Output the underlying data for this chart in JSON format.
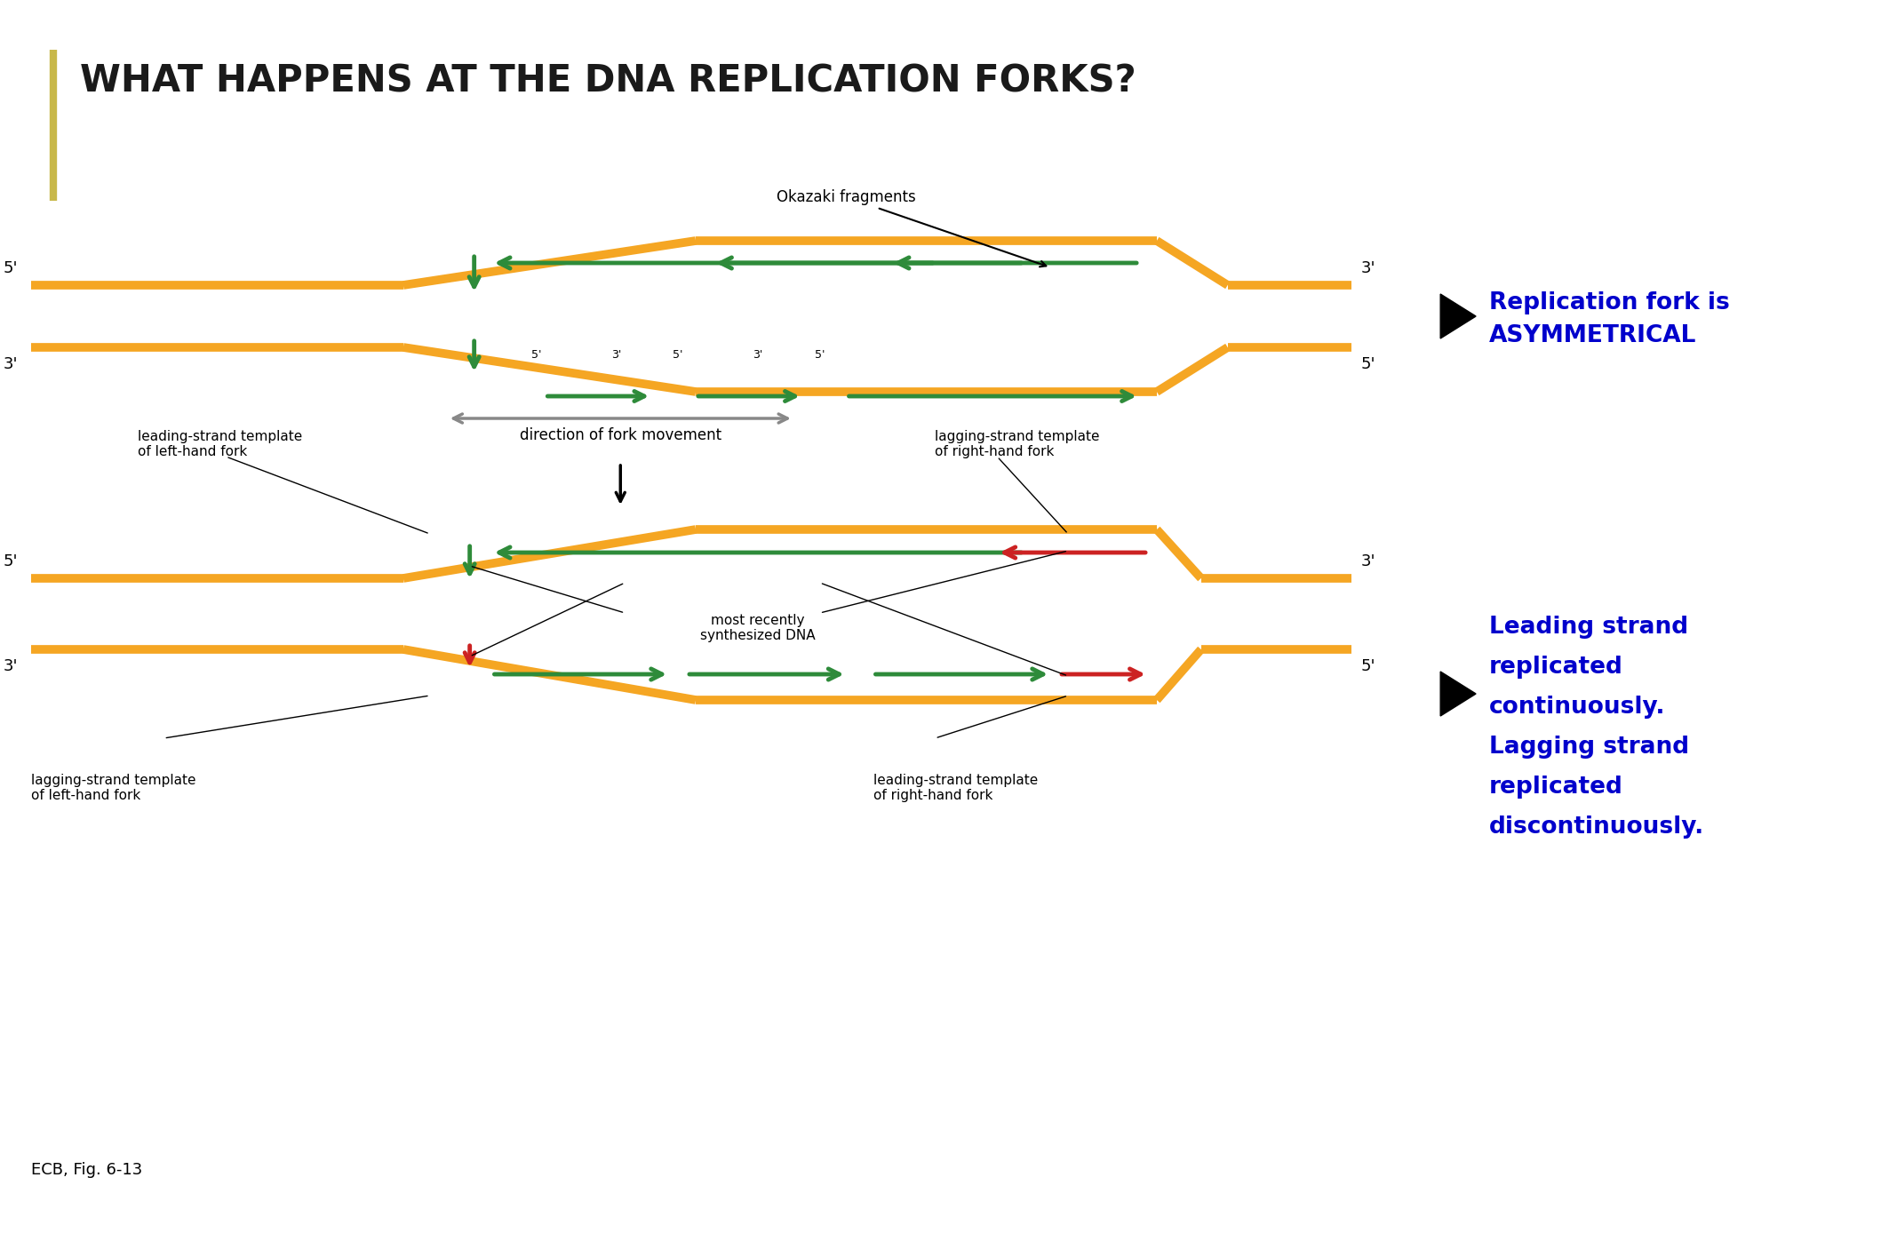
{
  "title": "WHAT HAPPENS AT THE DNA REPLICATION FORKS?",
  "title_color": "#1a1a1a",
  "accent_bar_color": "#c8b84a",
  "orange_color": "#F5A623",
  "green_color": "#2E8B3A",
  "red_color": "#CC2222",
  "gray_color": "#888888",
  "blue_color": "#0000CC",
  "bg_color": "#ffffff",
  "caption": "ECB, Fig. 6-13",
  "right_text1_line1": "Replication fork is",
  "right_text1_line2": "ASYMMETRICAL",
  "right_text2_line1": "Leading strand",
  "right_text2_line2": "replicated",
  "right_text2_line3": "continuously.",
  "right_text2_line4": "Lagging strand",
  "right_text2_line5": "replicated",
  "right_text2_line6": "discontinuously.",
  "okazaki_label": "Okazaki fragments",
  "direction_label": "direction of fork movement",
  "leading_left_label": "leading-strand template\nof left-hand fork",
  "lagging_right_label": "lagging-strand template\nof right-hand fork",
  "lagging_left_label": "lagging-strand template\nof left-hand fork",
  "leading_right_label": "leading-strand template\nof right-hand fork",
  "most_recently_label": "most recently\nsynthesized DNA"
}
